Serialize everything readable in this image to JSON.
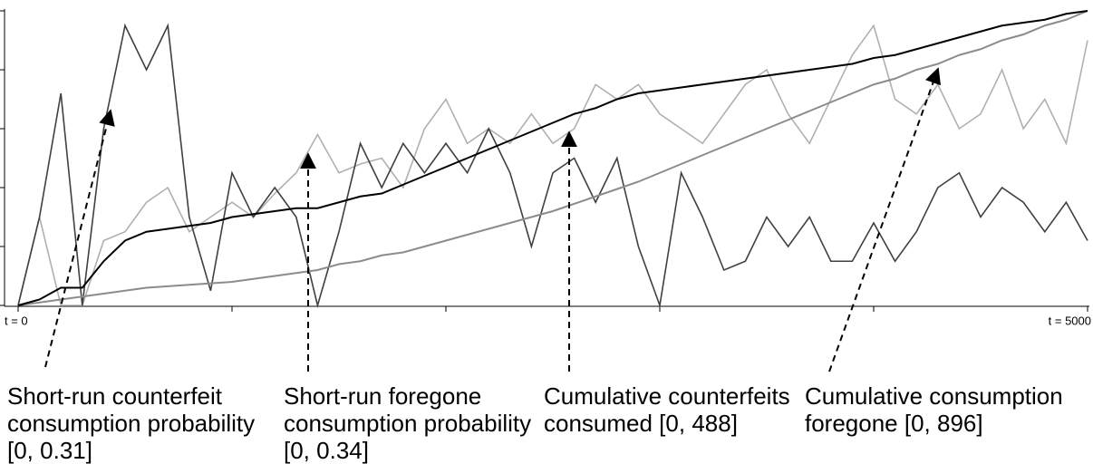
{
  "chart_data": {
    "type": "line",
    "x": [
      0,
      100,
      200,
      300,
      400,
      500,
      600,
      700,
      800,
      900,
      1000,
      1100,
      1200,
      1300,
      1400,
      1500,
      1600,
      1700,
      1800,
      1900,
      2000,
      2100,
      2200,
      2300,
      2400,
      2500,
      2600,
      2700,
      2800,
      2900,
      3000,
      3100,
      3200,
      3300,
      3400,
      3500,
      3600,
      3700,
      3800,
      3900,
      4000,
      4100,
      4200,
      4300,
      4400,
      4500,
      4600,
      4700,
      4800,
      4900,
      5000
    ],
    "xlim": [
      0,
      5000
    ],
    "xticks": [
      {
        "value": 0,
        "label": "t = 0"
      },
      {
        "value": 5000,
        "label": "t = 5000"
      }
    ],
    "xminorticks": [
      1000,
      2000,
      3000,
      4000
    ],
    "ylim": [
      0,
      1
    ],
    "yticks": [
      0,
      0.2,
      0.4,
      0.6,
      0.8,
      1
    ],
    "series": [
      {
        "name": "Short-run counterfeit consumption probability [0, 0.31]",
        "color": "#404040",
        "values": [
          0,
          0.3,
          0.72,
          0,
          0.6,
          0.95,
          0.8,
          0.95,
          0.3,
          0.05,
          0.45,
          0.3,
          0.4,
          0.3,
          0,
          0.25,
          0.55,
          0.4,
          0.55,
          0.45,
          0.55,
          0.45,
          0.6,
          0.45,
          0.2,
          0.45,
          0.5,
          0.35,
          0.5,
          0.2,
          0,
          0.45,
          0.3,
          0.12,
          0.15,
          0.3,
          0.2,
          0.3,
          0.15,
          0.15,
          0.28,
          0.15,
          0.25,
          0.4,
          0.45,
          0.3,
          0.4,
          0.35,
          0.25,
          0.35,
          0.22
        ]
      },
      {
        "name": "Short-run foregone consumption probability [0, 0.34]",
        "color": "#b0b0b0",
        "values": [
          0,
          0.3,
          0,
          0,
          0.22,
          0.25,
          0.35,
          0.4,
          0.25,
          0.3,
          0.35,
          0.3,
          0.38,
          0.45,
          0.58,
          0.45,
          0.48,
          0.5,
          0.4,
          0.6,
          0.7,
          0.55,
          0.6,
          0.55,
          0.65,
          0.55,
          0.6,
          0.75,
          0.7,
          0.75,
          0.65,
          0.6,
          0.55,
          0.65,
          0.75,
          0.8,
          0.65,
          0.55,
          0.7,
          0.85,
          0.95,
          0.7,
          0.65,
          0.75,
          0.6,
          0.65,
          0.8,
          0.6,
          0.7,
          0.55,
          0.9
        ]
      },
      {
        "name": "Cumulative counterfeits consumed [0, 488]",
        "color": "#000000",
        "values": [
          0,
          0.02,
          0.06,
          0.06,
          0.15,
          0.22,
          0.25,
          0.26,
          0.27,
          0.28,
          0.3,
          0.31,
          0.32,
          0.33,
          0.33,
          0.35,
          0.37,
          0.38,
          0.41,
          0.44,
          0.47,
          0.5,
          0.53,
          0.56,
          0.59,
          0.62,
          0.65,
          0.67,
          0.7,
          0.72,
          0.73,
          0.74,
          0.75,
          0.76,
          0.77,
          0.78,
          0.79,
          0.8,
          0.81,
          0.82,
          0.84,
          0.85,
          0.87,
          0.89,
          0.91,
          0.93,
          0.95,
          0.96,
          0.97,
          0.99,
          1
        ]
      },
      {
        "name": "Cumulative consumption foregone [0, 896]",
        "color": "#8c8c8c",
        "values": [
          0,
          0.01,
          0.02,
          0.03,
          0.04,
          0.05,
          0.06,
          0.065,
          0.07,
          0.075,
          0.08,
          0.09,
          0.1,
          0.11,
          0.12,
          0.14,
          0.15,
          0.17,
          0.18,
          0.2,
          0.22,
          0.24,
          0.26,
          0.28,
          0.3,
          0.32,
          0.345,
          0.37,
          0.395,
          0.42,
          0.45,
          0.48,
          0.51,
          0.54,
          0.57,
          0.6,
          0.63,
          0.66,
          0.69,
          0.72,
          0.75,
          0.77,
          0.8,
          0.82,
          0.85,
          0.87,
          0.9,
          0.92,
          0.95,
          0.97,
          1
        ]
      }
    ]
  }
}
